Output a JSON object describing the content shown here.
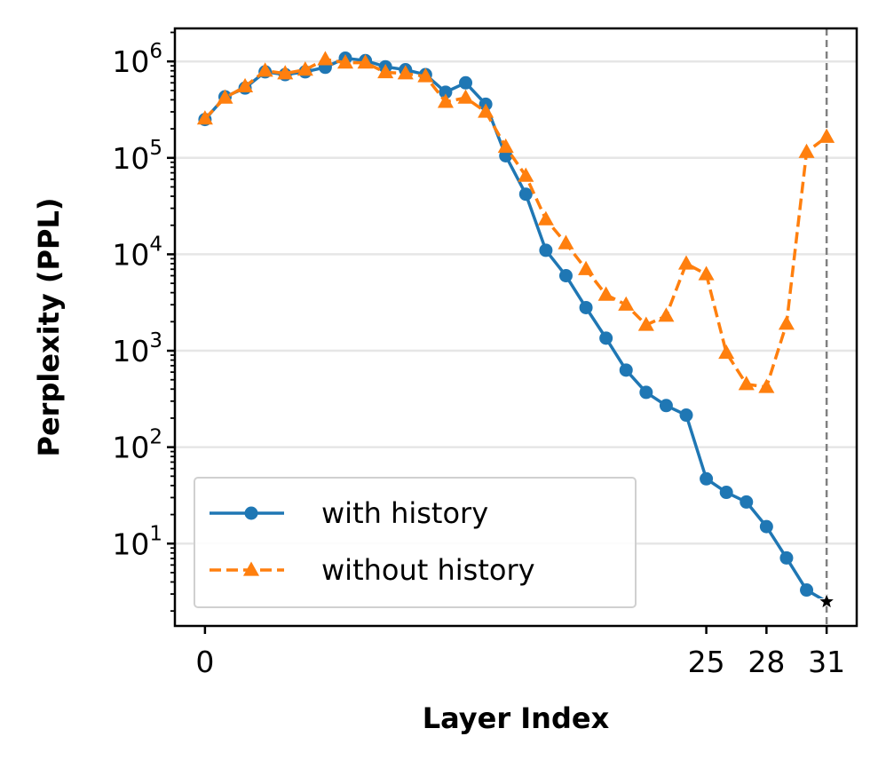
{
  "chart_data": {
    "type": "line",
    "xlabel": "Layer Index",
    "ylabel": "Perplexity (PPL)",
    "xlim": [
      -1.5,
      32.5
    ],
    "ylim": [
      1.4,
      2200000
    ],
    "yscale": "log",
    "xticks": [
      0,
      25,
      28,
      31
    ],
    "yticks": [
      {
        "base": "10",
        "exp": "1",
        "value": 10
      },
      {
        "base": "10",
        "exp": "2",
        "value": 100
      },
      {
        "base": "10",
        "exp": "3",
        "value": 1000
      },
      {
        "base": "10",
        "exp": "4",
        "value": 10000
      },
      {
        "base": "10",
        "exp": "5",
        "value": 100000
      },
      {
        "base": "10",
        "exp": "6",
        "value": 1000000
      }
    ],
    "grid": "horizontal",
    "legend_position": "lower-left",
    "vline_x": 31,
    "star_point": {
      "x": 31,
      "y": 2.5
    },
    "series": [
      {
        "name": "with history",
        "color": "#1f77b4",
        "marker": "circle",
        "linestyle": "solid",
        "x": [
          0,
          1,
          2,
          3,
          4,
          5,
          6,
          7,
          8,
          9,
          10,
          11,
          12,
          13,
          14,
          15,
          16,
          17,
          18,
          19,
          20,
          21,
          22,
          23,
          24,
          25,
          26,
          27,
          28,
          29,
          30,
          31
        ],
        "y": [
          250000,
          430000,
          530000,
          780000,
          730000,
          780000,
          870000,
          1080000,
          1020000,
          880000,
          820000,
          730000,
          480000,
          600000,
          360000,
          105000,
          42000,
          11000,
          6000,
          2800,
          1350,
          630,
          370,
          270,
          215,
          47,
          34,
          27,
          15,
          7.1,
          3.3,
          2.5
        ]
      },
      {
        "name": "without history",
        "color": "#ff7f0e",
        "marker": "triangle",
        "linestyle": "dashed",
        "x": [
          0,
          1,
          2,
          3,
          4,
          5,
          6,
          7,
          8,
          9,
          10,
          11,
          12,
          13,
          14,
          15,
          16,
          17,
          18,
          19,
          20,
          21,
          22,
          23,
          24,
          25,
          26,
          27,
          28,
          29,
          30,
          31
        ],
        "y": [
          255000,
          420000,
          550000,
          800000,
          750000,
          820000,
          1050000,
          970000,
          970000,
          770000,
          750000,
          700000,
          380000,
          420000,
          300000,
          130000,
          65000,
          23000,
          13000,
          7000,
          3800,
          3000,
          1850,
          2300,
          8000,
          6200,
          950,
          450,
          420,
          1900,
          115000,
          165000
        ]
      }
    ]
  }
}
